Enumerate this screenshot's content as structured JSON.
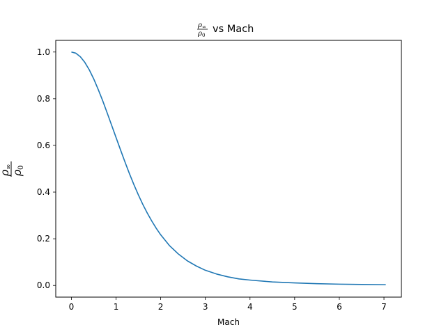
{
  "chart_data": {
    "type": "line",
    "title": {
      "fraction": {
        "num": "ρ",
        "num_sub": "∞",
        "den": "ρ",
        "den_sub": "0"
      },
      "text": "vs Mach"
    },
    "xlabel": "Mach",
    "ylabel": {
      "num": "ρ",
      "num_sub": "∞",
      "den": "ρ",
      "den_sub": "0"
    },
    "xlim": [
      -0.35,
      7.39
    ],
    "ylim": [
      -0.05,
      1.05
    ],
    "xticks": [
      0,
      1,
      2,
      3,
      4,
      5,
      6,
      7
    ],
    "xtick_labels": [
      "0",
      "1",
      "2",
      "3",
      "4",
      "5",
      "6",
      "7"
    ],
    "yticks": [
      0.0,
      0.2,
      0.4,
      0.6,
      0.8,
      1.0
    ],
    "ytick_labels": [
      "0.0",
      "0.2",
      "0.4",
      "0.6",
      "0.8",
      "1.0"
    ],
    "grid": false,
    "line_color": "#1f77b4",
    "series": [
      {
        "x": [
          0,
          0.1,
          0.2,
          0.3,
          0.4,
          0.5,
          0.6,
          0.7,
          0.8,
          0.9,
          1.0,
          1.1,
          1.2,
          1.3,
          1.4,
          1.5,
          1.6,
          1.7,
          1.8,
          1.9,
          2.0,
          2.2,
          2.4,
          2.6,
          2.8,
          3.0,
          3.25,
          3.5,
          3.75,
          4.0,
          4.5,
          5.0,
          5.5,
          6.0,
          6.5,
          7.0,
          7.04
        ],
        "values": [
          1.0,
          0.995,
          0.98,
          0.956,
          0.924,
          0.885,
          0.84,
          0.792,
          0.74,
          0.687,
          0.634,
          0.581,
          0.529,
          0.479,
          0.432,
          0.388,
          0.347,
          0.31,
          0.276,
          0.245,
          0.217,
          0.17,
          0.134,
          0.105,
          0.083,
          0.065,
          0.049,
          0.037,
          0.028,
          0.023,
          0.015,
          0.011,
          0.0075,
          0.0055,
          0.0043,
          0.0033,
          0.0032
        ]
      }
    ]
  }
}
